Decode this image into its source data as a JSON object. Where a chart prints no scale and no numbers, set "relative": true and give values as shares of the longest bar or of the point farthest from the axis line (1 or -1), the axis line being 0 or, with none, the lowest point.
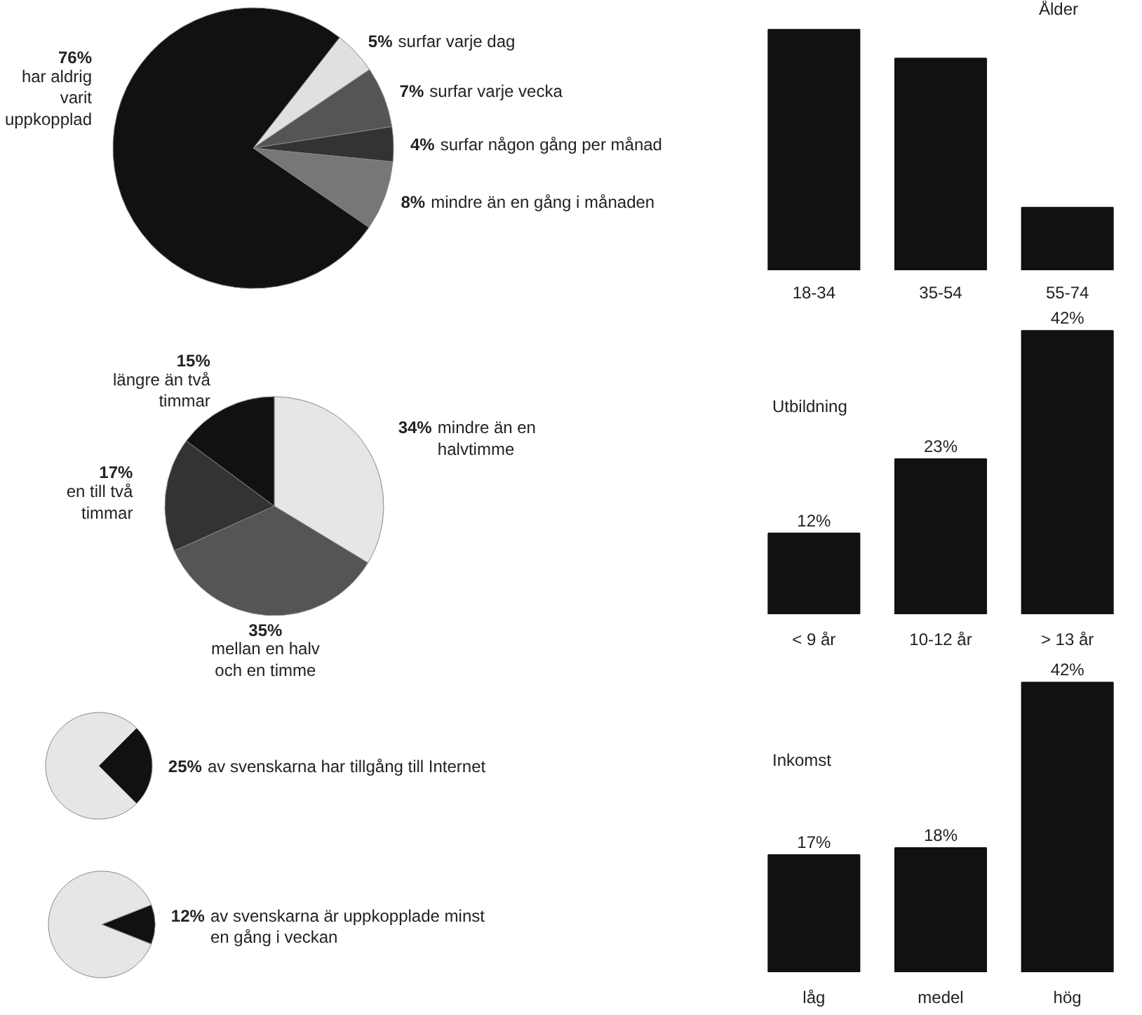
{
  "chart_data": [
    {
      "type": "pie",
      "categories": [
        "surfar varje dag",
        "surfar varje vecka",
        "surfar någon gång per månad",
        "mindre än en gång i månaden",
        "har aldrig varit uppkopplad"
      ],
      "values": [
        5,
        7,
        4,
        8,
        76
      ],
      "value_labels": [
        "5%",
        "7%",
        "4%",
        "8%",
        "76%"
      ],
      "colors": [
        "#e0e0e0",
        "#555555",
        "#333333",
        "#777777",
        "#111111"
      ]
    },
    {
      "type": "pie",
      "categories": [
        "mindre än en halvtimme",
        "mellan en halv och en timme",
        "en till två timmar",
        "längre än två timmar"
      ],
      "values": [
        34,
        35,
        17,
        15
      ],
      "value_labels": [
        "34%",
        "35%",
        "17%",
        "15%"
      ],
      "colors": [
        "#e6e6e6",
        "#555555",
        "#333333",
        "#111111"
      ]
    },
    {
      "type": "pie",
      "categories": [
        "av svenskarna har tillgång till Internet",
        null
      ],
      "values": [
        25,
        75
      ],
      "value_labels": [
        "25%",
        null
      ],
      "colors": [
        "#111111",
        "#e6e6e6"
      ]
    },
    {
      "type": "pie",
      "categories": [
        "av svenskarna är uppkopplade minst en gång i veckan",
        null
      ],
      "values": [
        12,
        88
      ],
      "value_labels": [
        "12%",
        null
      ],
      "colors": [
        "#111111",
        "#e6e6e6"
      ]
    },
    {
      "type": "bar",
      "title": "Ålder",
      "categories": [
        "18-34",
        "35-54",
        "55-74"
      ],
      "values": [
        1,
        0.88,
        0.26
      ],
      "relative": true,
      "color": "#111111",
      "tick_labels": "x"
    },
    {
      "type": "bar",
      "title": "Utbildning",
      "categories": [
        "< 9 år",
        "10-12 år",
        "> 13 år"
      ],
      "values": [
        12,
        23,
        42
      ],
      "value_labels": [
        "12%",
        "23%",
        "42%"
      ],
      "color": "#111111",
      "tick_labels": "x"
    },
    {
      "type": "bar",
      "title": "Inkomst",
      "categories": [
        "låg",
        "medel",
        "hög"
      ],
      "values": [
        17,
        18,
        42
      ],
      "value_labels": [
        "17%",
        "18%",
        "42%"
      ],
      "color": "#111111",
      "tick_labels": "x"
    }
  ]
}
